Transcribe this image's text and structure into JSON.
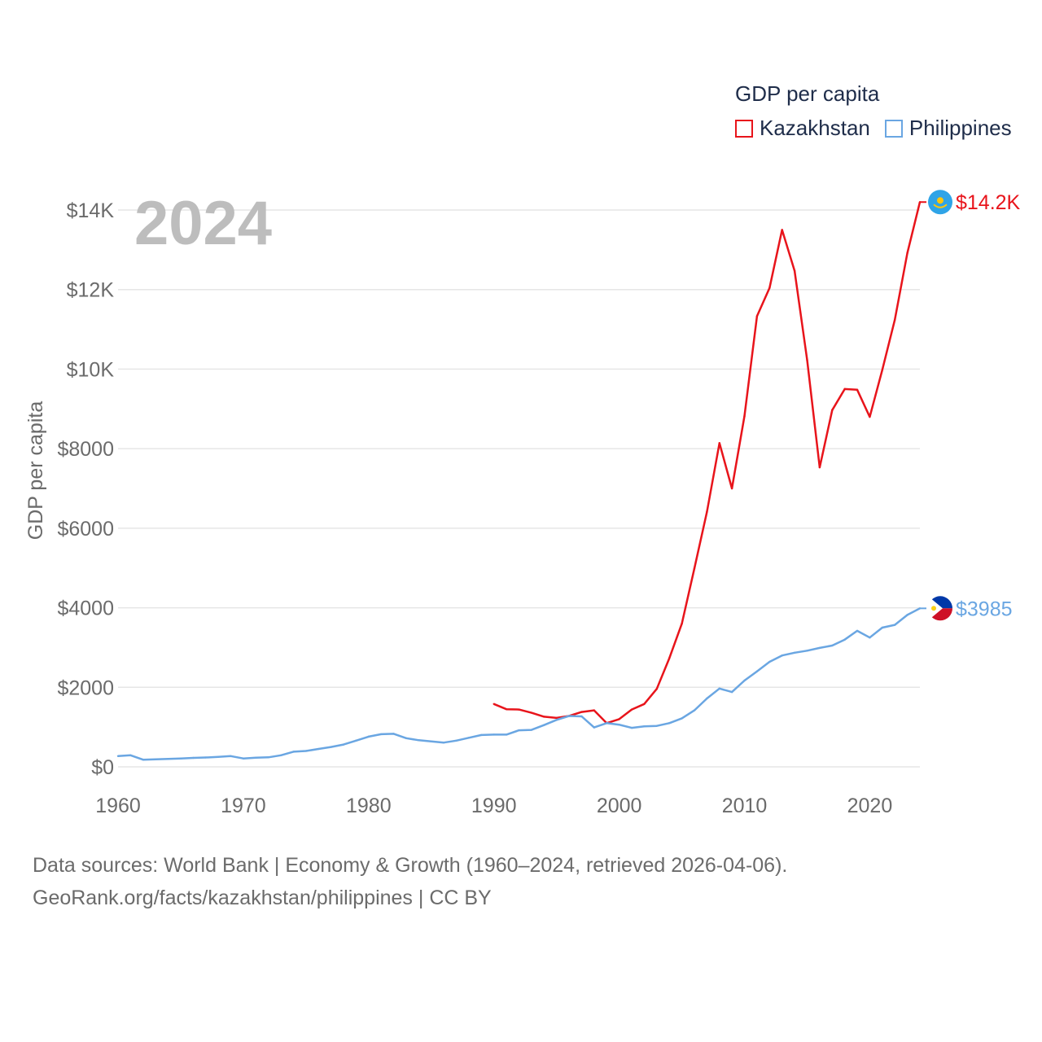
{
  "legend": {
    "title": "GDP per capita"
  },
  "footer": {
    "line1": "Data sources: World Bank | Economy & Growth (1960–2024, retrieved 2026-04-06).",
    "line2": "GeoRank.org/facts/kazakhstan/philippines | CC BY"
  },
  "colors": {
    "kazakhstan": "#e8141b",
    "philippines": "#6aa6e2",
    "grid": "#e6e6e6",
    "axis_text": "#6b6b6b",
    "year_watermark": "#bdbdbd"
  },
  "chart_data": {
    "type": "line",
    "title": "GDP per capita",
    "year_label": "2024",
    "ylabel": "GDP per capita",
    "xlabel": "",
    "xlim": [
      1960,
      2024
    ],
    "ylim": [
      0,
      14000
    ],
    "x_ticks": [
      1960,
      1970,
      1980,
      1990,
      2000,
      2010,
      2020
    ],
    "x_tick_labels": [
      "1960",
      "1970",
      "1980",
      "1990",
      "2000",
      "2010",
      "2020"
    ],
    "y_ticks": [
      0,
      2000,
      4000,
      6000,
      8000,
      10000,
      12000,
      14000
    ],
    "y_tick_labels": [
      "$0",
      "$2000",
      "$4000",
      "$6000",
      "$8000",
      "$10K",
      "$12K",
      "$14K"
    ],
    "grid": true,
    "legend_position": "top-right",
    "series": [
      {
        "name": "Kazakhstan",
        "color_key": "kazakhstan",
        "flag": "kazakhstan-flag",
        "end_label": "$14.2K",
        "points": [
          [
            1990,
            1580
          ],
          [
            1991,
            1450
          ],
          [
            1992,
            1440
          ],
          [
            1993,
            1360
          ],
          [
            1994,
            1260
          ],
          [
            1995,
            1230
          ],
          [
            1996,
            1280
          ],
          [
            1997,
            1380
          ],
          [
            1998,
            1420
          ],
          [
            1999,
            1100
          ],
          [
            2000,
            1200
          ],
          [
            2001,
            1440
          ],
          [
            2002,
            1580
          ],
          [
            2003,
            1960
          ],
          [
            2004,
            2730
          ],
          [
            2005,
            3600
          ],
          [
            2006,
            4990
          ],
          [
            2007,
            6410
          ],
          [
            2008,
            8140
          ],
          [
            2009,
            7000
          ],
          [
            2010,
            8820
          ],
          [
            2011,
            11330
          ],
          [
            2012,
            12040
          ],
          [
            2013,
            13500
          ],
          [
            2014,
            12470
          ],
          [
            2015,
            10230
          ],
          [
            2016,
            7530
          ],
          [
            2017,
            8970
          ],
          [
            2018,
            9500
          ],
          [
            2019,
            9480
          ],
          [
            2020,
            8800
          ],
          [
            2021,
            9980
          ],
          [
            2022,
            11240
          ],
          [
            2023,
            12920
          ],
          [
            2024,
            14200
          ]
        ]
      },
      {
        "name": "Philippines",
        "color_key": "philippines",
        "flag": "philippines-flag",
        "end_label": "$3985",
        "points": [
          [
            1960,
            270
          ],
          [
            1961,
            290
          ],
          [
            1962,
            180
          ],
          [
            1963,
            190
          ],
          [
            1964,
            200
          ],
          [
            1965,
            210
          ],
          [
            1966,
            225
          ],
          [
            1967,
            235
          ],
          [
            1968,
            250
          ],
          [
            1969,
            270
          ],
          [
            1970,
            210
          ],
          [
            1971,
            230
          ],
          [
            1972,
            240
          ],
          [
            1973,
            290
          ],
          [
            1974,
            380
          ],
          [
            1975,
            400
          ],
          [
            1976,
            450
          ],
          [
            1977,
            500
          ],
          [
            1978,
            560
          ],
          [
            1979,
            660
          ],
          [
            1980,
            760
          ],
          [
            1981,
            820
          ],
          [
            1982,
            830
          ],
          [
            1983,
            720
          ],
          [
            1984,
            670
          ],
          [
            1985,
            640
          ],
          [
            1986,
            610
          ],
          [
            1987,
            660
          ],
          [
            1988,
            730
          ],
          [
            1989,
            800
          ],
          [
            1990,
            810
          ],
          [
            1991,
            810
          ],
          [
            1992,
            920
          ],
          [
            1993,
            930
          ],
          [
            1994,
            1050
          ],
          [
            1995,
            1180
          ],
          [
            1996,
            1280
          ],
          [
            1997,
            1270
          ],
          [
            1998,
            990
          ],
          [
            1999,
            1100
          ],
          [
            2000,
            1060
          ],
          [
            2001,
            980
          ],
          [
            2002,
            1020
          ],
          [
            2003,
            1030
          ],
          [
            2004,
            1100
          ],
          [
            2005,
            1220
          ],
          [
            2006,
            1420
          ],
          [
            2007,
            1720
          ],
          [
            2008,
            1970
          ],
          [
            2009,
            1880
          ],
          [
            2010,
            2170
          ],
          [
            2011,
            2400
          ],
          [
            2012,
            2640
          ],
          [
            2013,
            2800
          ],
          [
            2014,
            2870
          ],
          [
            2015,
            2920
          ],
          [
            2016,
            2990
          ],
          [
            2017,
            3050
          ],
          [
            2018,
            3200
          ],
          [
            2019,
            3420
          ],
          [
            2020,
            3250
          ],
          [
            2021,
            3500
          ],
          [
            2022,
            3570
          ],
          [
            2023,
            3820
          ],
          [
            2024,
            3985
          ]
        ]
      }
    ]
  }
}
